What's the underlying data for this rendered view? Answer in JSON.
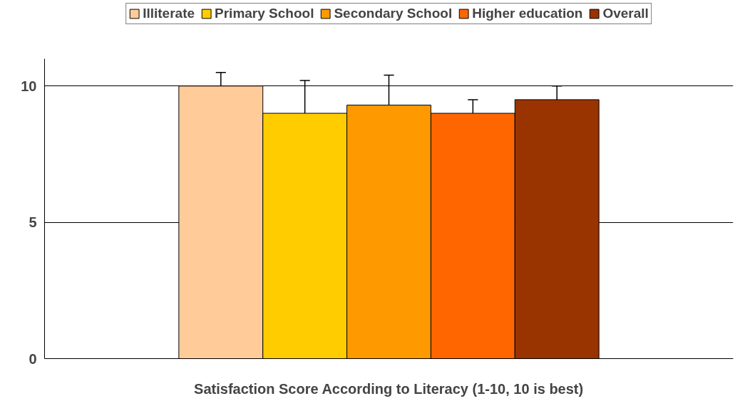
{
  "chart_data": {
    "type": "bar",
    "xlabel": "Satisfaction Score According to Literacy (1-10, 10 is best)",
    "categories": [
      null
    ],
    "series": [
      {
        "name": "Illiterate",
        "color": "#ffcc99",
        "values": [
          10
        ],
        "errors": [
          [
            10,
            10.5
          ]
        ]
      },
      {
        "name": "Primary School",
        "color": "#ffcc00",
        "values": [
          9
        ],
        "errors": [
          [
            9,
            10.2
          ]
        ]
      },
      {
        "name": "Secondary School",
        "color": "#ff9900",
        "values": [
          9.3
        ],
        "errors": [
          [
            9.3,
            10.4
          ]
        ]
      },
      {
        "name": "Higher education",
        "color": "#ff6600",
        "values": [
          9
        ],
        "errors": [
          [
            9,
            9.5
          ]
        ]
      },
      {
        "name": "Overall",
        "color": "#993300",
        "values": [
          9.5
        ],
        "errors": [
          [
            9.5,
            10
          ]
        ]
      }
    ],
    "ylim": [
      0,
      11
    ],
    "yticks": [
      0,
      5,
      10
    ],
    "grid": "y",
    "legend": "top"
  }
}
